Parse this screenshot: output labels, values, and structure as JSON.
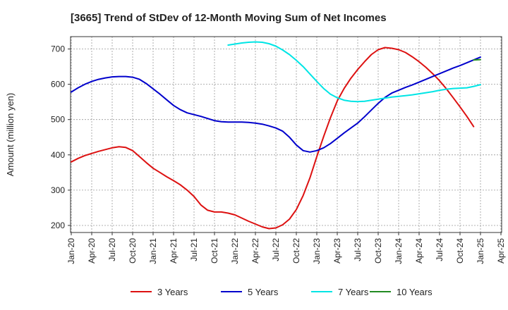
{
  "chart_data": {
    "type": "line",
    "title": "[3665]  Trend of StDev of 12-Month Moving Sum of Net Incomes",
    "ylabel": "Amount (million yen)",
    "xlabel": "",
    "ylim": [
      180,
      735
    ],
    "yticks": [
      200,
      300,
      400,
      500,
      600,
      700
    ],
    "x_tick_labels": [
      "Jan-20",
      "Apr-20",
      "Jul-20",
      "Oct-20",
      "Jan-21",
      "Apr-21",
      "Jul-21",
      "Oct-21",
      "Jan-22",
      "Apr-22",
      "Jul-22",
      "Oct-22",
      "Jan-23",
      "Apr-23",
      "Jul-23",
      "Oct-23",
      "Jan-24",
      "Apr-24",
      "Jul-24",
      "Oct-24",
      "Jan-25",
      "Apr-25"
    ],
    "grid": true,
    "legend_position": "bottom",
    "series": [
      {
        "name": "3 Years",
        "color": "#dd1111",
        "points": [
          [
            "Jan-20",
            380
          ],
          [
            "Feb-20",
            390
          ],
          [
            "Mar-20",
            398
          ],
          [
            "Apr-20",
            404
          ],
          [
            "May-20",
            410
          ],
          [
            "Jun-20",
            415
          ],
          [
            "Jul-20",
            420
          ],
          [
            "Aug-20",
            423
          ],
          [
            "Sep-20",
            421
          ],
          [
            "Oct-20",
            412
          ],
          [
            "Nov-20",
            395
          ],
          [
            "Dec-20",
            378
          ],
          [
            "Jan-21",
            362
          ],
          [
            "Feb-21",
            350
          ],
          [
            "Mar-21",
            338
          ],
          [
            "Apr-21",
            327
          ],
          [
            "May-21",
            315
          ],
          [
            "Jun-21",
            300
          ],
          [
            "Jul-21",
            282
          ],
          [
            "Aug-21",
            258
          ],
          [
            "Sep-21",
            243
          ],
          [
            "Oct-21",
            238
          ],
          [
            "Nov-21",
            238
          ],
          [
            "Dec-21",
            235
          ],
          [
            "Jan-22",
            230
          ],
          [
            "Feb-22",
            221
          ],
          [
            "Mar-22",
            212
          ],
          [
            "Apr-22",
            204
          ],
          [
            "May-22",
            196
          ],
          [
            "Jun-22",
            191
          ],
          [
            "Jul-22",
            193
          ],
          [
            "Aug-22",
            202
          ],
          [
            "Sep-22",
            218
          ],
          [
            "Oct-22",
            245
          ],
          [
            "Nov-22",
            285
          ],
          [
            "Dec-22",
            335
          ],
          [
            "Jan-23",
            395
          ],
          [
            "Feb-23",
            452
          ],
          [
            "Mar-23",
            505
          ],
          [
            "Apr-23",
            553
          ],
          [
            "May-23",
            588
          ],
          [
            "Jun-23",
            617
          ],
          [
            "Jul-23",
            642
          ],
          [
            "Aug-23",
            664
          ],
          [
            "Sep-23",
            684
          ],
          [
            "Oct-23",
            698
          ],
          [
            "Nov-23",
            704
          ],
          [
            "Dec-23",
            702
          ],
          [
            "Jan-24",
            698
          ],
          [
            "Feb-24",
            690
          ],
          [
            "Mar-24",
            678
          ],
          [
            "Apr-24",
            664
          ],
          [
            "May-24",
            648
          ],
          [
            "Jun-24",
            630
          ],
          [
            "Jul-24",
            610
          ],
          [
            "Aug-24",
            587
          ],
          [
            "Sep-24",
            562
          ],
          [
            "Oct-24",
            536
          ],
          [
            "Nov-24",
            509
          ],
          [
            "Dec-24",
            480
          ]
        ]
      },
      {
        "name": "5 Years",
        "color": "#0000cc",
        "points": [
          [
            "Jan-20",
            578
          ],
          [
            "Feb-20",
            590
          ],
          [
            "Mar-20",
            600
          ],
          [
            "Apr-20",
            608
          ],
          [
            "May-20",
            614
          ],
          [
            "Jun-20",
            618
          ],
          [
            "Jul-20",
            621
          ],
          [
            "Aug-20",
            622
          ],
          [
            "Sep-20",
            622
          ],
          [
            "Oct-20",
            620
          ],
          [
            "Nov-20",
            614
          ],
          [
            "Dec-20",
            602
          ],
          [
            "Jan-21",
            587
          ],
          [
            "Feb-21",
            572
          ],
          [
            "Mar-21",
            556
          ],
          [
            "Apr-21",
            540
          ],
          [
            "May-21",
            528
          ],
          [
            "Jun-21",
            519
          ],
          [
            "Jul-21",
            514
          ],
          [
            "Aug-21",
            509
          ],
          [
            "Sep-21",
            503
          ],
          [
            "Oct-21",
            497
          ],
          [
            "Nov-21",
            494
          ],
          [
            "Dec-21",
            493
          ],
          [
            "Jan-22",
            493
          ],
          [
            "Feb-22",
            493
          ],
          [
            "Mar-22",
            492
          ],
          [
            "Apr-22",
            490
          ],
          [
            "May-22",
            487
          ],
          [
            "Jun-22",
            482
          ],
          [
            "Jul-22",
            476
          ],
          [
            "Aug-22",
            467
          ],
          [
            "Sep-22",
            450
          ],
          [
            "Oct-22",
            428
          ],
          [
            "Nov-22",
            412
          ],
          [
            "Dec-22",
            408
          ],
          [
            "Jan-23",
            412
          ],
          [
            "Feb-23",
            420
          ],
          [
            "Mar-23",
            432
          ],
          [
            "Apr-23",
            447
          ],
          [
            "May-23",
            462
          ],
          [
            "Jun-23",
            476
          ],
          [
            "Jul-23",
            490
          ],
          [
            "Aug-23",
            508
          ],
          [
            "Sep-23",
            527
          ],
          [
            "Oct-23",
            546
          ],
          [
            "Nov-23",
            563
          ],
          [
            "Dec-23",
            575
          ],
          [
            "Jan-24",
            583
          ],
          [
            "Feb-24",
            591
          ],
          [
            "Mar-24",
            598
          ],
          [
            "Apr-24",
            606
          ],
          [
            "May-24",
            614
          ],
          [
            "Jun-24",
            622
          ],
          [
            "Jul-24",
            630
          ],
          [
            "Aug-24",
            638
          ],
          [
            "Sep-24",
            646
          ],
          [
            "Oct-24",
            653
          ],
          [
            "Nov-24",
            661
          ],
          [
            "Dec-24",
            669
          ],
          [
            "Jan-25",
            677
          ]
        ]
      },
      {
        "name": "7 Years",
        "color": "#00e5e5",
        "points": [
          [
            "Dec-21",
            711
          ],
          [
            "Jan-22",
            714
          ],
          [
            "Feb-22",
            717
          ],
          [
            "Mar-22",
            719
          ],
          [
            "Apr-22",
            720
          ],
          [
            "May-22",
            719
          ],
          [
            "Jun-22",
            715
          ],
          [
            "Jul-22",
            708
          ],
          [
            "Aug-22",
            697
          ],
          [
            "Sep-22",
            684
          ],
          [
            "Oct-22",
            668
          ],
          [
            "Nov-22",
            650
          ],
          [
            "Dec-22",
            629
          ],
          [
            "Jan-23",
            608
          ],
          [
            "Feb-23",
            588
          ],
          [
            "Mar-23",
            572
          ],
          [
            "Apr-23",
            562
          ],
          [
            "May-23",
            555
          ],
          [
            "Jun-23",
            552
          ],
          [
            "Jul-23",
            551
          ],
          [
            "Aug-23",
            552
          ],
          [
            "Sep-23",
            555
          ],
          [
            "Oct-23",
            558
          ],
          [
            "Nov-23",
            561
          ],
          [
            "Dec-23",
            564
          ],
          [
            "Jan-24",
            566
          ],
          [
            "Feb-24",
            568
          ],
          [
            "Mar-24",
            570
          ],
          [
            "Apr-24",
            573
          ],
          [
            "May-24",
            576
          ],
          [
            "Jun-24",
            579
          ],
          [
            "Jul-24",
            583
          ],
          [
            "Aug-24",
            586
          ],
          [
            "Sep-24",
            588
          ],
          [
            "Oct-24",
            589
          ],
          [
            "Nov-24",
            590
          ],
          [
            "Dec-24",
            594
          ],
          [
            "Jan-25",
            599
          ]
        ]
      },
      {
        "name": "10 Years",
        "color": "#228b22",
        "points": [
          [
            "Dec-24",
            669
          ],
          [
            "Jan-25",
            670
          ]
        ]
      }
    ]
  }
}
